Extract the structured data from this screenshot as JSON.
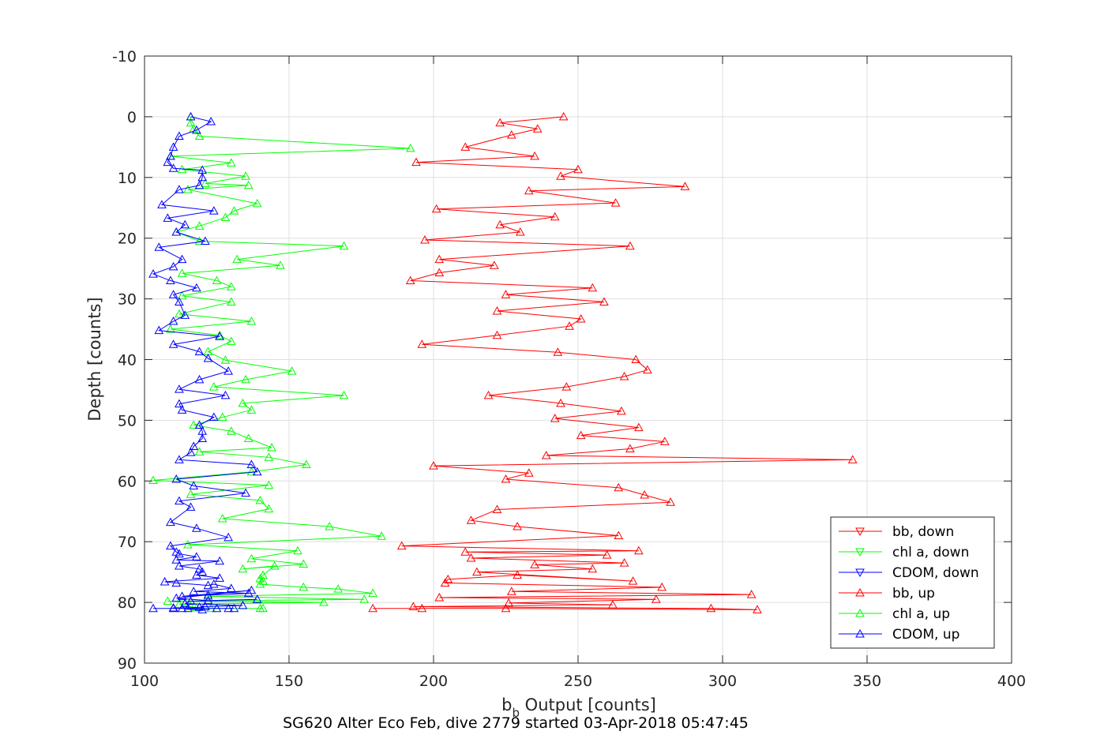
{
  "chart_data": {
    "type": "line",
    "title": "SG620 Alter Eco Feb, dive 2779 started 03-Apr-2018 05:47:45",
    "xlabel_main": "b",
    "xlabel_sub": "b",
    "xlabel_rest": " Output [counts]",
    "ylabel": "Depth [counts]",
    "xlim": [
      100,
      400
    ],
    "ylim": [
      -10,
      90
    ],
    "y_reversed": true,
    "grid": true,
    "legend_position": "bottom-right",
    "x_ticks": [
      "100",
      "150",
      "200",
      "250",
      "300",
      "350",
      "400"
    ],
    "y_ticks": [
      "-10",
      "0",
      "10",
      "20",
      "30",
      "40",
      "50",
      "60",
      "70",
      "80",
      "90"
    ],
    "series": [
      {
        "name": "bb, down",
        "color": "#ff0000",
        "marker": "triangle-down",
        "x": [],
        "y": []
      },
      {
        "name": "chl a, down",
        "color": "#00ff00",
        "marker": "triangle-down",
        "x": [],
        "y": []
      },
      {
        "name": "CDOM, down",
        "color": "#0000ff",
        "marker": "triangle-down",
        "x": [],
        "y": []
      },
      {
        "name": "bb, up",
        "color": "#ff0000",
        "marker": "triangle-up",
        "x": [
          245,
          223,
          236,
          227,
          211,
          235,
          194,
          250,
          244,
          287,
          233,
          263,
          201,
          242,
          223,
          230,
          197,
          268,
          202,
          221,
          202,
          192,
          255,
          225,
          259,
          222,
          251,
          247,
          222,
          196,
          243,
          270,
          274,
          266,
          246,
          219,
          244,
          265,
          242,
          271,
          251,
          280,
          268,
          239,
          345,
          200,
          233,
          225,
          264,
          273,
          282,
          222,
          213,
          229,
          264,
          189,
          271,
          211,
          260,
          213,
          266,
          235,
          255,
          215,
          269,
          229,
          205,
          204,
          279,
          227,
          310,
          202,
          277,
          226,
          262,
          193,
          296,
          312,
          225,
          196,
          179
        ],
        "y": [
          0,
          1,
          2,
          3,
          5,
          6.5,
          7.5,
          8.7,
          9.8,
          11.5,
          12.2,
          14.2,
          15.2,
          16.5,
          17.8,
          19,
          20.3,
          21.3,
          23.5,
          24.5,
          25.7,
          27,
          28.2,
          29.3,
          30.5,
          32,
          33.3,
          34.5,
          36,
          37.5,
          38.8,
          40,
          41.7,
          42.8,
          44.5,
          45.9,
          47.2,
          48.5,
          49.7,
          51.2,
          52.5,
          53.5,
          54.7,
          55.8,
          56.5,
          57.5,
          58.7,
          59.7,
          61.1,
          62.3,
          63.5,
          64.7,
          66.5,
          67.5,
          69,
          70.7,
          71.5,
          71.7,
          72.2,
          72.7,
          73.5,
          73.8,
          74.5,
          75,
          76.5,
          75.5,
          76.2,
          76.8,
          77.5,
          78.2,
          78.7,
          79.2,
          79.5,
          80.1,
          80.4,
          80.7,
          81,
          81.2,
          81,
          81,
          81
        ]
      },
      {
        "name": "chl a, up",
        "color": "#00ff00",
        "marker": "triangle-up",
        "x": [
          116,
          116,
          117,
          119,
          192,
          109,
          130,
          113,
          135,
          121,
          136,
          115,
          139,
          131,
          128,
          119,
          111,
          119,
          169,
          132,
          147,
          113,
          125,
          130,
          113,
          130,
          112,
          137,
          109,
          126,
          130,
          122,
          128,
          151,
          135,
          124,
          169,
          134,
          137,
          127,
          117,
          130,
          136,
          144,
          119,
          143,
          156,
          137,
          103,
          143,
          116,
          140,
          143,
          127,
          164,
          182,
          115,
          153,
          137,
          155,
          134,
          145,
          141,
          140,
          141,
          140,
          155,
          167,
          179,
          122,
          176,
          108,
          162,
          112,
          116,
          118,
          123,
          140,
          141
        ],
        "y": [
          0,
          1,
          2,
          3.2,
          5.2,
          6.5,
          7.6,
          8.7,
          9.8,
          11,
          11.3,
          12,
          14.3,
          15.5,
          16.6,
          18,
          19,
          20.5,
          21.3,
          23.5,
          24.5,
          25.8,
          27,
          28,
          29.5,
          30.5,
          32.5,
          33.7,
          35,
          36,
          37,
          38.7,
          40.1,
          41.9,
          43.3,
          44.5,
          45.9,
          47.2,
          48.3,
          49.5,
          50.8,
          51.8,
          53,
          54.5,
          55.2,
          56.1,
          57.3,
          58.5,
          59.9,
          60.7,
          62.2,
          63.2,
          64.6,
          66.2,
          67.5,
          69.1,
          70.5,
          71.5,
          72.8,
          73.7,
          74.5,
          74,
          75.5,
          76.1,
          76.5,
          77,
          77.5,
          77.8,
          78.5,
          79,
          79.5,
          79.8,
          80,
          80.3,
          80.7,
          80.9,
          81,
          81,
          81
        ]
      },
      {
        "name": "CDOM, up",
        "color": "#0000ff",
        "marker": "triangle-up",
        "x": [
          116,
          123,
          118,
          112,
          110,
          109,
          108,
          110,
          120,
          120,
          119,
          112,
          106,
          124,
          108,
          114,
          111,
          121,
          105,
          113,
          110,
          103,
          109,
          118,
          110,
          112,
          114,
          110,
          105,
          126,
          110,
          119,
          122,
          129,
          119,
          112,
          128,
          112,
          113,
          124,
          119,
          120,
          120,
          117,
          116,
          112,
          137,
          139,
          111,
          117,
          135,
          112,
          116,
          109,
          118,
          129,
          109,
          111,
          112,
          118,
          111,
          126,
          112,
          119,
          120,
          118,
          126,
          107,
          111,
          122,
          124,
          130,
          117,
          136,
          122,
          113,
          137,
          111,
          122,
          139,
          116,
          114,
          134,
          121,
          119,
          110,
          110,
          115,
          120,
          113,
          125,
          103,
          129,
          131
        ],
        "y": [
          0,
          0.8,
          2.2,
          3.2,
          5,
          6.5,
          7.5,
          8.5,
          8.8,
          10,
          11.3,
          12,
          14.5,
          15.5,
          16.7,
          17.8,
          19,
          20.5,
          21.5,
          23.5,
          24.7,
          25.9,
          27,
          28.2,
          29.3,
          30.5,
          32.7,
          33.7,
          35.2,
          36.2,
          37.5,
          38.7,
          39.8,
          41.9,
          43.3,
          44.9,
          45.9,
          47.3,
          48.3,
          49.5,
          50.8,
          51.8,
          53,
          54.3,
          55.3,
          56.5,
          57.3,
          58.5,
          59.7,
          60.8,
          62,
          63.3,
          64.3,
          66.8,
          67.8,
          69.3,
          70.7,
          71.7,
          72,
          72.5,
          73,
          73.2,
          74,
          74.5,
          75,
          75.5,
          76,
          76.6,
          76.8,
          77.2,
          77,
          77.7,
          78.2,
          78.5,
          78.8,
          79,
          78,
          79.3,
          79.7,
          79.5,
          79.8,
          80.2,
          80.5,
          80.7,
          80.8,
          81,
          80.9,
          81,
          81.2,
          81,
          81,
          81,
          81,
          81
        ]
      }
    ]
  }
}
